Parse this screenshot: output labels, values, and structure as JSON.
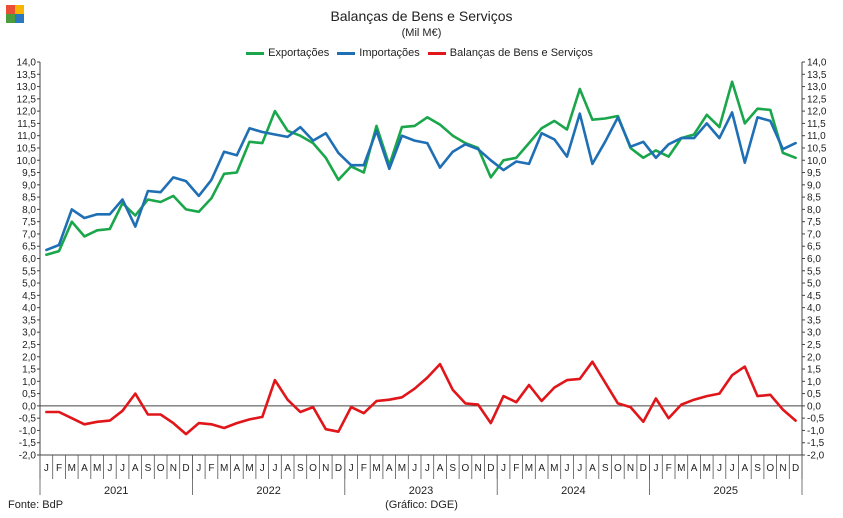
{
  "title": "Balanças de Bens e Serviços",
  "subtitle": "(Mil M€)",
  "footer": {
    "source": "Fonte: BdP",
    "credit": "(Gráfico: DGE)"
  },
  "logo_colors": [
    "#e94f35",
    "#f7b500",
    "#4a9c3d",
    "#2b78c2"
  ],
  "chart_data": {
    "type": "line",
    "months": [
      "J",
      "F",
      "M",
      "A",
      "M",
      "J",
      "J",
      "A",
      "S",
      "O",
      "N",
      "D"
    ],
    "years": [
      "2021",
      "2022",
      "2023",
      "2024",
      "2025"
    ],
    "ylim": [
      -2.0,
      14.0
    ],
    "ystep": 0.5,
    "grid": false,
    "legend_position": "top",
    "series": [
      {
        "name": "Exportações",
        "color": "#1aa64a",
        "values": [
          6.15,
          6.3,
          7.5,
          6.9,
          7.15,
          7.2,
          8.25,
          7.75,
          8.4,
          8.3,
          8.55,
          8.0,
          7.9,
          8.45,
          9.45,
          9.5,
          10.75,
          10.7,
          12.0,
          11.2,
          11.0,
          10.7,
          10.1,
          9.2,
          9.75,
          9.5,
          11.4,
          9.8,
          11.35,
          11.4,
          11.75,
          11.45,
          11.0,
          10.7,
          10.5,
          9.3,
          10.0,
          10.1,
          10.7,
          11.3,
          11.6,
          11.25,
          12.9,
          11.65,
          11.7,
          11.8,
          10.5,
          10.1,
          10.4,
          10.15,
          10.9,
          11.05,
          11.85,
          11.35,
          13.2,
          11.5,
          12.1,
          12.05,
          10.3,
          10.1
        ]
      },
      {
        "name": "Importações",
        "color": "#1f6fb5",
        "values": [
          6.35,
          6.55,
          8.0,
          7.65,
          7.8,
          7.8,
          8.4,
          7.3,
          8.75,
          8.7,
          9.3,
          9.15,
          8.55,
          9.2,
          10.35,
          10.2,
          11.3,
          11.15,
          11.05,
          10.95,
          11.35,
          10.8,
          11.1,
          10.3,
          9.8,
          9.8,
          11.2,
          9.65,
          11.0,
          10.8,
          10.7,
          9.7,
          10.35,
          10.65,
          10.45,
          10.0,
          9.6,
          9.95,
          9.85,
          11.1,
          10.85,
          10.15,
          11.9,
          9.85,
          10.75,
          11.75,
          10.55,
          10.75,
          10.1,
          10.65,
          10.9,
          10.9,
          11.5,
          10.9,
          11.95,
          9.9,
          11.75,
          11.6,
          10.45,
          10.7
        ]
      },
      {
        "name": "Balanças de Bens e Serviços",
        "color": "#e0161a",
        "values": [
          -0.25,
          -0.25,
          -0.5,
          -0.75,
          -0.65,
          -0.6,
          -0.2,
          0.5,
          -0.35,
          -0.35,
          -0.7,
          -1.15,
          -0.7,
          -0.75,
          -0.9,
          -0.7,
          -0.55,
          -0.45,
          1.05,
          0.25,
          -0.25,
          -0.05,
          -0.95,
          -1.05,
          -0.05,
          -0.3,
          0.2,
          0.25,
          0.35,
          0.7,
          1.15,
          1.7,
          0.65,
          0.1,
          0.05,
          -0.7,
          0.4,
          0.15,
          0.85,
          0.2,
          0.75,
          1.05,
          1.1,
          1.8,
          null,
          0.1,
          -0.05,
          -0.65,
          0.3,
          -0.5,
          0.05,
          0.25,
          0.4,
          0.5,
          1.25,
          1.6,
          0.4,
          0.45,
          -0.15,
          -0.6
        ]
      }
    ]
  }
}
